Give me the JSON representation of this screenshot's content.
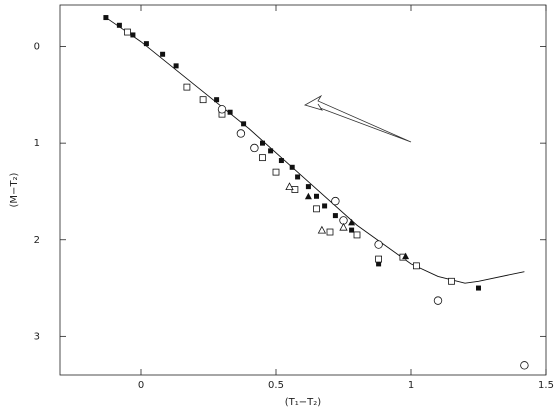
{
  "chart_data": {
    "type": "scatter",
    "x_label": "(T₁−T₂)",
    "y_label": "(M−T₂)",
    "xlim": [
      -0.3,
      1.5
    ],
    "ylim": [
      -0.43,
      3.4
    ],
    "y_inverted": true,
    "xticks": [
      0,
      0.5,
      1,
      1.5
    ],
    "yticks": [
      0,
      1,
      2,
      3
    ],
    "color": "#111111",
    "curve": {
      "x": [
        -0.13,
        0,
        0.2,
        0.4,
        0.6,
        0.8,
        1.0,
        1.1,
        1.2,
        1.25,
        1.42
      ],
      "y": [
        -0.3,
        -0.05,
        0.4,
        0.85,
        1.35,
        1.85,
        2.25,
        2.38,
        2.45,
        2.43,
        2.33
      ]
    },
    "series": [
      {
        "marker": "filled-square",
        "x": [
          -0.13,
          -0.08,
          -0.03,
          0.02,
          0.08,
          0.13,
          0.28,
          0.33,
          0.38,
          0.45,
          0.48,
          0.52,
          0.56,
          0.58,
          0.62,
          0.65,
          0.68,
          0.72,
          0.78,
          0.88,
          1.25
        ],
        "y": [
          -0.3,
          -0.22,
          -0.12,
          -0.03,
          0.08,
          0.2,
          0.55,
          0.68,
          0.8,
          1.0,
          1.08,
          1.18,
          1.25,
          1.35,
          1.45,
          1.55,
          1.65,
          1.75,
          1.9,
          2.25,
          2.5
        ]
      },
      {
        "marker": "open-square",
        "x": [
          -0.05,
          0.17,
          0.23,
          0.3,
          0.45,
          0.5,
          0.57,
          0.65,
          0.7,
          0.8,
          0.88,
          0.97,
          1.02,
          1.15
        ],
        "y": [
          -0.15,
          0.42,
          0.55,
          0.7,
          1.15,
          1.3,
          1.48,
          1.68,
          1.92,
          1.95,
          2.2,
          2.18,
          2.27,
          2.43
        ]
      },
      {
        "marker": "open-circle",
        "x": [
          0.3,
          0.37,
          0.42,
          0.72,
          0.75,
          0.88,
          1.1,
          1.42
        ],
        "y": [
          0.65,
          0.9,
          1.05,
          1.6,
          1.8,
          2.05,
          2.63,
          3.3
        ]
      },
      {
        "marker": "open-triangle",
        "x": [
          0.55,
          0.67,
          0.75
        ],
        "y": [
          1.45,
          1.9,
          1.87
        ]
      },
      {
        "marker": "filled-triangle",
        "x": [
          0.62,
          0.78,
          0.98
        ],
        "y": [
          1.55,
          1.82,
          2.17
        ]
      }
    ]
  }
}
